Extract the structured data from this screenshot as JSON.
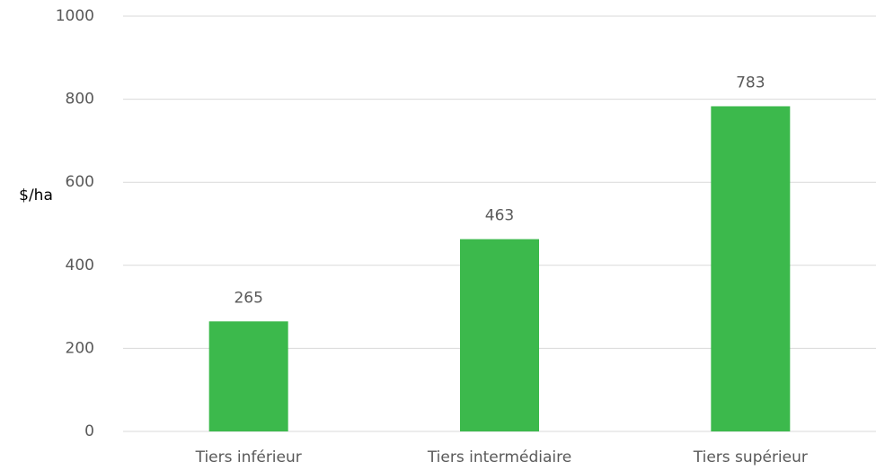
{
  "chart_data": {
    "type": "bar",
    "y_label": "$/ha",
    "categories": [
      "Tiers inférieur",
      "Tiers intermédiaire",
      "Tiers supérieur"
    ],
    "values": [
      265,
      463,
      783
    ],
    "color": "#3cb94c",
    "ylim": [
      0,
      1000
    ],
    "yticks": [
      0,
      200,
      400,
      600,
      800,
      1000
    ],
    "grid": true
  }
}
